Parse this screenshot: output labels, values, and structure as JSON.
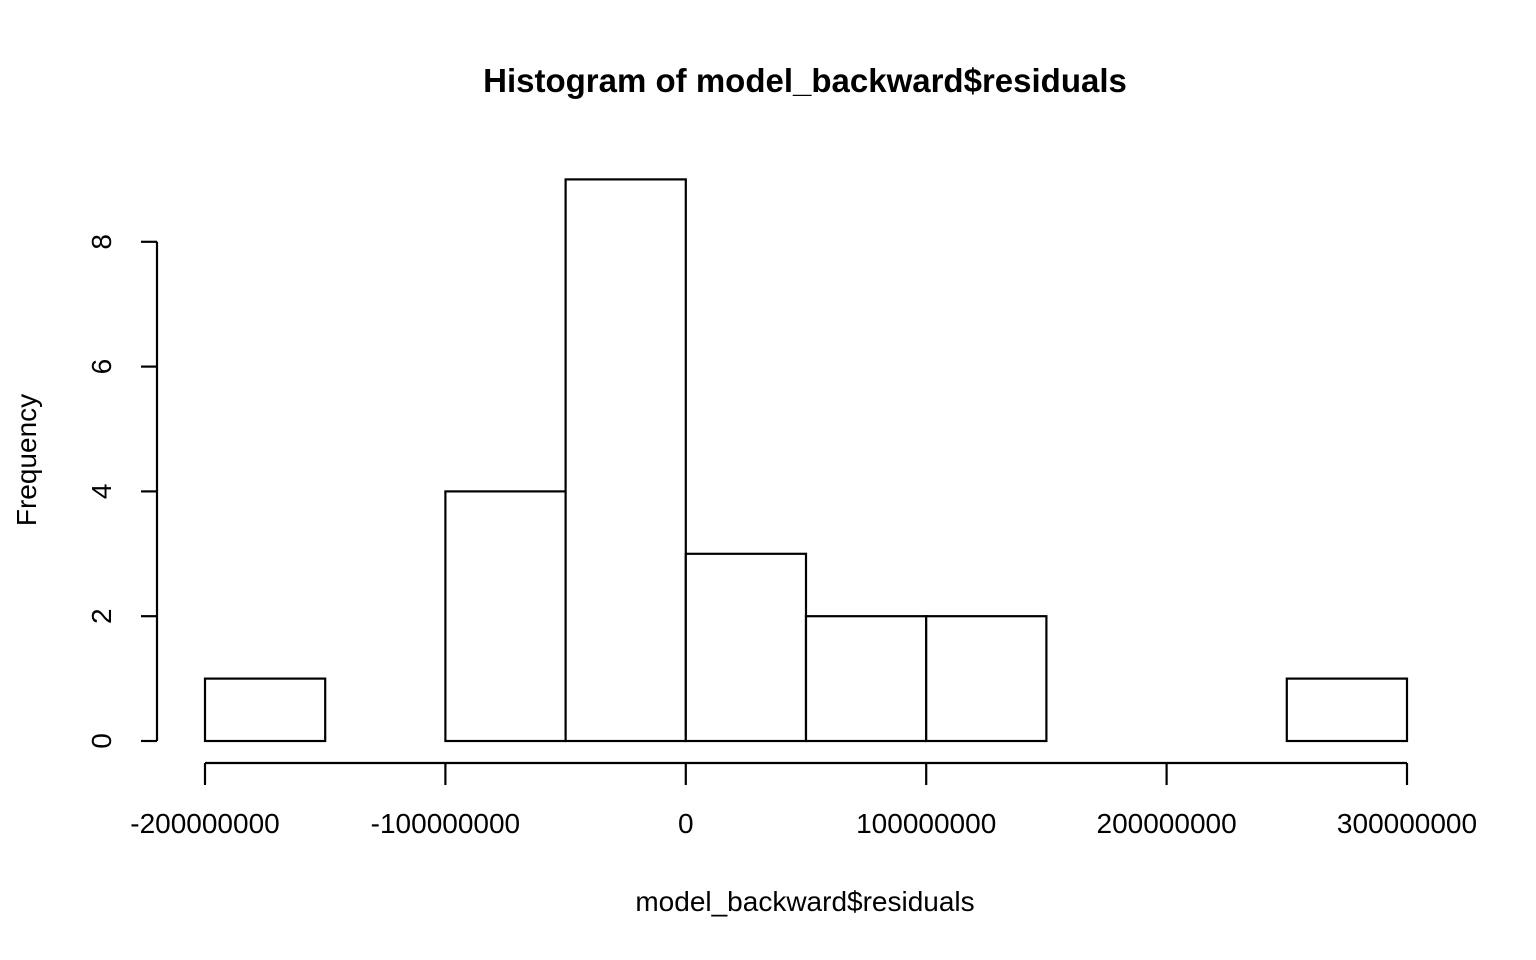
{
  "chart_data": {
    "type": "bar",
    "title": "Histogram of model_backward$residuals",
    "xlabel": "model_backward$residuals",
    "ylabel": "Frequency",
    "bins": [
      {
        "x0": -200000000,
        "x1": -150000000,
        "count": 1
      },
      {
        "x0": -150000000,
        "x1": -100000000,
        "count": 0
      },
      {
        "x0": -100000000,
        "x1": -50000000,
        "count": 4
      },
      {
        "x0": -50000000,
        "x1": 0,
        "count": 9
      },
      {
        "x0": 0,
        "x1": 50000000,
        "count": 3
      },
      {
        "x0": 50000000,
        "x1": 100000000,
        "count": 2
      },
      {
        "x0": 100000000,
        "x1": 150000000,
        "count": 2
      },
      {
        "x0": 150000000,
        "x1": 200000000,
        "count": 0
      },
      {
        "x0": 200000000,
        "x1": 250000000,
        "count": 0
      },
      {
        "x0": 250000000,
        "x1": 300000000,
        "count": 1
      }
    ],
    "xlim": [
      -200000000,
      300000000
    ],
    "ylim": [
      0,
      9
    ],
    "x_ticks": [
      -200000000,
      -100000000,
      0,
      100000000,
      200000000,
      300000000
    ],
    "x_tick_labels": [
      "-200000000",
      "-100000000",
      "0",
      "100000000",
      "200000000",
      "300000000"
    ],
    "y_ticks": [
      0,
      2,
      4,
      6,
      8
    ],
    "y_tick_labels": [
      "0",
      "2",
      "4",
      "6",
      "8"
    ],
    "grid": false,
    "legend": "none",
    "colors": {
      "bar_fill": "#ffffff",
      "bar_stroke": "#000000"
    }
  }
}
